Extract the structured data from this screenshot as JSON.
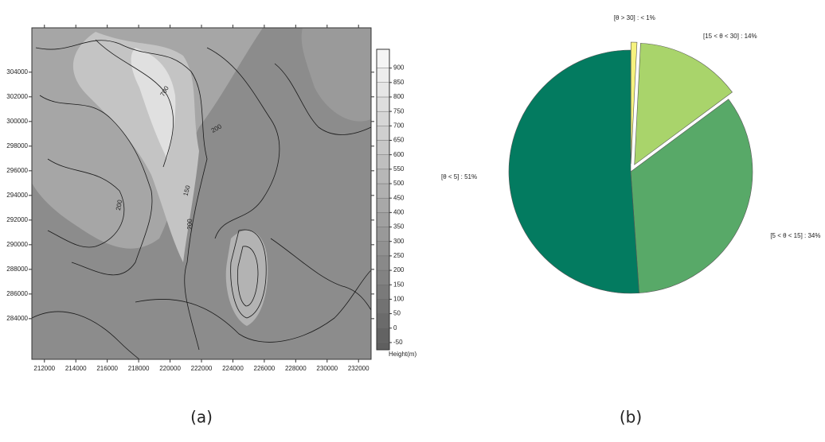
{
  "chart_data": [
    {
      "type": "contour",
      "caption": "(a)",
      "xlim": [
        211200,
        232800
      ],
      "xticks": [
        212000,
        214000,
        216000,
        218000,
        220000,
        222000,
        224000,
        226000,
        228000,
        230000,
        232000
      ],
      "ylim": [
        280700,
        307600
      ],
      "yticks": [
        284000,
        286000,
        288000,
        290000,
        292000,
        294000,
        296000,
        298000,
        300000,
        302000,
        304000
      ],
      "colorbar_label": "Height(m)",
      "clim": [
        -75,
        965
      ],
      "colorbar_ticks": [
        -50,
        0,
        50,
        100,
        150,
        200,
        250,
        300,
        350,
        400,
        450,
        500,
        550,
        600,
        650,
        700,
        750,
        800,
        850,
        900
      ],
      "contour_labels": [
        "700",
        "200",
        "150",
        "200",
        "200"
      ]
    },
    {
      "type": "pie",
      "caption": "(b)",
      "labels": [
        "[θ > 30] : < 1%",
        "[15 < θ < 30] : 14%",
        "[5 < θ < 15] : 34%",
        "[θ < 5] : 51%"
      ],
      "values": [
        0.8,
        14,
        34,
        51
      ],
      "colors": [
        "#f6f27e",
        "#a9d46b",
        "#58a968",
        "#037b60"
      ],
      "exploded": [
        true,
        true,
        false,
        false
      ]
    }
  ]
}
